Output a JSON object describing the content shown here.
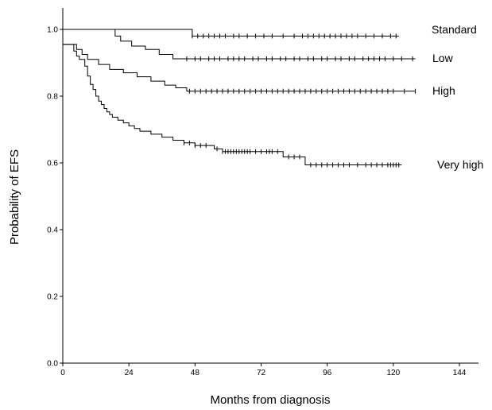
{
  "chart_data": {
    "type": "line",
    "title": "",
    "xlabel": "Months from diagnosis",
    "ylabel": "Probability of EFS",
    "xlim": [
      0,
      150
    ],
    "ylim": [
      0,
      1.05
    ],
    "x_ticks": [
      0,
      24,
      48,
      72,
      96,
      120,
      144
    ],
    "x_tick_labels": [
      "0",
      "24",
      "48",
      "72",
      "96",
      "120",
      "144"
    ],
    "y_ticks": [
      0.0,
      0.2,
      0.4,
      0.6,
      0.8,
      1.0
    ],
    "y_tick_labels": [
      "0.0",
      "0.2",
      "0.4",
      "0.6",
      "0.8",
      "1.0"
    ],
    "grid": false,
    "legend": "inline labels at right end of each curve",
    "series": [
      {
        "name": "Standard",
        "steps": [
          [
            0,
            1.0
          ],
          [
            47,
            1.0
          ],
          [
            47,
            0.98
          ],
          [
            122,
            0.98
          ]
        ],
        "censored": [
          47,
          49,
          51,
          53,
          55,
          57,
          59,
          62,
          64,
          67,
          70,
          73,
          76,
          80,
          84,
          87,
          89,
          91,
          93,
          95,
          97,
          99,
          101,
          103,
          105,
          107,
          110,
          113,
          116,
          119,
          121
        ]
      },
      {
        "name": "Low",
        "steps": [
          [
            0,
            1.0
          ],
          [
            19,
            1.0
          ],
          [
            19,
            0.98
          ],
          [
            21,
            0.98
          ],
          [
            21,
            0.965
          ],
          [
            25,
            0.965
          ],
          [
            25,
            0.95
          ],
          [
            30,
            0.95
          ],
          [
            30,
            0.94
          ],
          [
            35,
            0.94
          ],
          [
            35,
            0.925
          ],
          [
            40,
            0.925
          ],
          [
            40,
            0.912
          ],
          [
            128,
            0.912
          ]
        ],
        "censored": [
          45,
          48,
          50,
          53,
          55,
          57,
          60,
          62,
          64,
          66,
          69,
          71,
          74,
          76,
          79,
          81,
          84,
          86,
          89,
          91,
          94,
          96,
          99,
          101,
          104,
          106,
          109,
          111,
          113,
          115,
          117,
          120,
          123,
          127
        ]
      },
      {
        "name": "High",
        "steps": [
          [
            0,
            0.955
          ],
          [
            5,
            0.955
          ],
          [
            5,
            0.94
          ],
          [
            7,
            0.94
          ],
          [
            7,
            0.925
          ],
          [
            9,
            0.925
          ],
          [
            9,
            0.91
          ],
          [
            13,
            0.91
          ],
          [
            13,
            0.895
          ],
          [
            17,
            0.895
          ],
          [
            17,
            0.88
          ],
          [
            22,
            0.88
          ],
          [
            22,
            0.87
          ],
          [
            27,
            0.87
          ],
          [
            27,
            0.858
          ],
          [
            32,
            0.858
          ],
          [
            32,
            0.845
          ],
          [
            37,
            0.845
          ],
          [
            37,
            0.833
          ],
          [
            41,
            0.833
          ],
          [
            41,
            0.825
          ],
          [
            45,
            0.825
          ],
          [
            45,
            0.815
          ],
          [
            128,
            0.815
          ]
        ],
        "censored": [
          46,
          48,
          50,
          52,
          54,
          56,
          58,
          60,
          62,
          64,
          66,
          68,
          70,
          72,
          74,
          76,
          78,
          80,
          82,
          84,
          86,
          88,
          90,
          92,
          94,
          96,
          98,
          100,
          102,
          104,
          106,
          108,
          110,
          112,
          114,
          116,
          118,
          120,
          124,
          128
        ]
      },
      {
        "name": "Very high",
        "steps": [
          [
            0,
            0.955
          ],
          [
            4,
            0.955
          ],
          [
            4,
            0.935
          ],
          [
            5,
            0.935
          ],
          [
            5,
            0.92
          ],
          [
            6,
            0.92
          ],
          [
            6,
            0.91
          ],
          [
            8,
            0.91
          ],
          [
            8,
            0.89
          ],
          [
            9,
            0.89
          ],
          [
            9,
            0.86
          ],
          [
            10,
            0.86
          ],
          [
            10,
            0.835
          ],
          [
            11,
            0.835
          ],
          [
            11,
            0.82
          ],
          [
            12,
            0.82
          ],
          [
            12,
            0.8
          ],
          [
            13,
            0.8
          ],
          [
            13,
            0.785
          ],
          [
            14,
            0.785
          ],
          [
            14,
            0.775
          ],
          [
            15,
            0.775
          ],
          [
            15,
            0.763
          ],
          [
            16,
            0.763
          ],
          [
            16,
            0.753
          ],
          [
            17,
            0.753
          ],
          [
            17,
            0.745
          ],
          [
            18,
            0.745
          ],
          [
            18,
            0.737
          ],
          [
            20,
            0.737
          ],
          [
            20,
            0.728
          ],
          [
            22,
            0.728
          ],
          [
            22,
            0.72
          ],
          [
            24,
            0.72
          ],
          [
            24,
            0.711
          ],
          [
            26,
            0.711
          ],
          [
            26,
            0.703
          ],
          [
            28,
            0.703
          ],
          [
            28,
            0.695
          ],
          [
            32,
            0.695
          ],
          [
            32,
            0.686
          ],
          [
            36,
            0.686
          ],
          [
            36,
            0.677
          ],
          [
            40,
            0.677
          ],
          [
            40,
            0.668
          ],
          [
            44,
            0.668
          ],
          [
            44,
            0.66
          ],
          [
            48,
            0.66
          ],
          [
            48,
            0.652
          ],
          [
            55,
            0.652
          ],
          [
            55,
            0.642
          ],
          [
            58,
            0.642
          ],
          [
            58,
            0.634
          ],
          [
            80,
            0.634
          ],
          [
            80,
            0.618
          ],
          [
            88,
            0.618
          ],
          [
            88,
            0.594
          ],
          [
            123,
            0.594
          ]
        ],
        "censored": [
          44,
          46,
          48,
          50,
          52,
          56,
          58,
          59,
          60,
          61,
          62,
          63,
          64,
          65,
          66,
          67,
          68,
          70,
          72,
          74,
          75,
          76,
          78,
          82,
          84,
          86,
          90,
          92,
          94,
          96,
          98,
          100,
          102,
          104,
          107,
          110,
          112,
          114,
          116,
          118,
          119,
          120,
          121,
          122
        ]
      }
    ]
  }
}
